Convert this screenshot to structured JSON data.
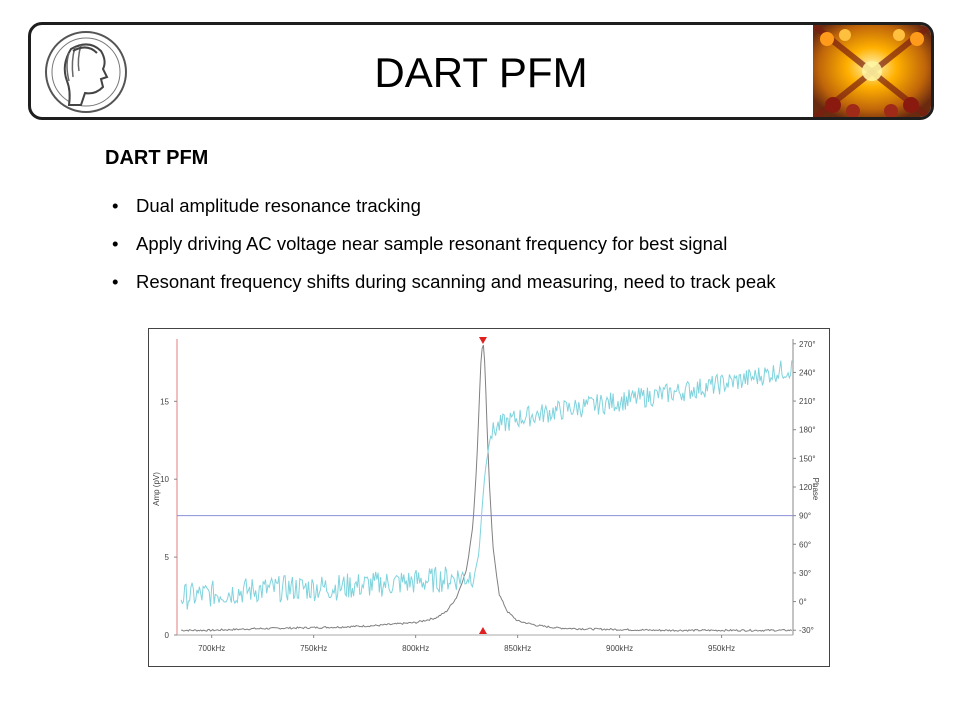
{
  "header": {
    "title": "DART PFM"
  },
  "slide": {
    "heading": "DART PFM",
    "bullets": [
      "Dual amplitude resonance tracking",
      "Apply driving AC voltage near sample resonant frequency for best signal",
      "Resonant frequency shifts during scanning and measuring, need to track peak"
    ],
    "bullet_glyph": "•"
  },
  "chart_data": {
    "type": "line",
    "title": "",
    "xlabel": "",
    "ylabel": "Amp (pV)",
    "y2label": "Phase",
    "x_tick_labels": [
      "700kHz",
      "750kHz",
      "800kHz",
      "850kHz",
      "900kHz",
      "950kHz"
    ],
    "x_ticks": [
      700,
      750,
      800,
      850,
      900,
      950
    ],
    "xlim": [
      683,
      985
    ],
    "y_ticks": [
      0,
      5,
      10,
      15
    ],
    "y_tick_labels": [
      "0",
      "5",
      "10",
      "15"
    ],
    "ylim": [
      0,
      19
    ],
    "y2_ticks": [
      -30,
      0,
      30,
      60,
      90,
      120,
      150,
      180,
      210,
      240,
      270
    ],
    "y2_tick_labels": [
      "-30°",
      "0°",
      "30°",
      "60°",
      "90°",
      "120°",
      "150°",
      "180°",
      "210°",
      "240°",
      "270°"
    ],
    "y2lim": [
      -35,
      275
    ],
    "grid": false,
    "resonance_marker_khz": 833,
    "reference_line_phase": 90,
    "series": [
      {
        "axis": "left",
        "color": "#808080",
        "x": [
          685,
          700,
          720,
          740,
          760,
          780,
          800,
          810,
          815,
          820,
          825,
          828,
          830,
          831,
          832,
          833,
          834,
          835,
          836,
          838,
          841,
          845,
          850,
          860,
          870,
          880,
          900,
          920,
          940,
          960,
          985
        ],
        "y": [
          0.3,
          0.3,
          0.4,
          0.45,
          0.5,
          0.6,
          0.8,
          1.1,
          1.5,
          2.4,
          4.2,
          7.0,
          11.0,
          14.5,
          17.5,
          19.0,
          17.2,
          13.5,
          10.0,
          5.5,
          2.6,
          1.5,
          0.9,
          0.6,
          0.45,
          0.4,
          0.35,
          0.3,
          0.3,
          0.3,
          0.3
        ]
      },
      {
        "axis": "right",
        "color": "#7fd3dd",
        "x": [
          685,
          700,
          720,
          740,
          760,
          780,
          800,
          815,
          825,
          829,
          831,
          832,
          833,
          834,
          835,
          836,
          837,
          840,
          845,
          850,
          870,
          900,
          930,
          960,
          985
        ],
        "y": [
          5,
          8,
          12,
          14,
          15,
          18,
          21,
          24,
          26,
          30,
          50,
          80,
          110,
          135,
          150,
          165,
          175,
          183,
          188,
          192,
          200,
          210,
          220,
          232,
          245
        ]
      }
    ]
  }
}
